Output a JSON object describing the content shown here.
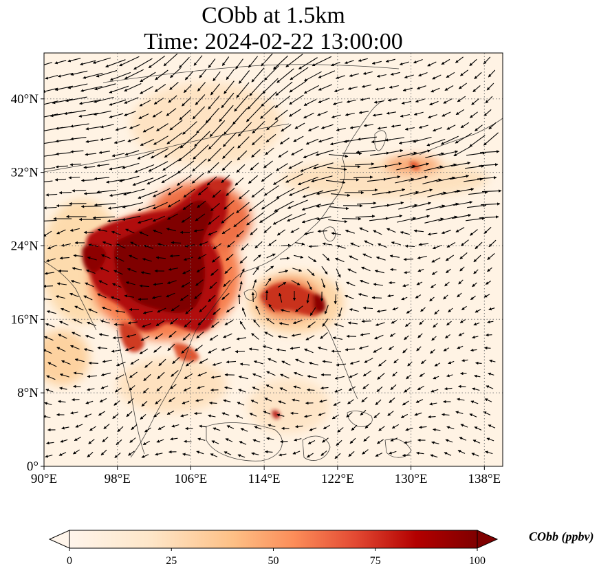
{
  "figure": {
    "title_line1": "CObb at 1.5km",
    "title_line2": "Time: 2024-02-22 13:00:00"
  },
  "map": {
    "extent_lon": [
      90,
      140
    ],
    "extent_lat": [
      0,
      45
    ],
    "lon_ticks": [
      {
        "value": 90,
        "label": "90°E"
      },
      {
        "value": 98,
        "label": "98°E"
      },
      {
        "value": 106,
        "label": "106°E"
      },
      {
        "value": 114,
        "label": "114°E"
      },
      {
        "value": 122,
        "label": "122°E"
      },
      {
        "value": 130,
        "label": "130°E"
      },
      {
        "value": 138,
        "label": "138°E"
      }
    ],
    "lat_ticks": [
      {
        "value": 0,
        "label": "0°"
      },
      {
        "value": 8,
        "label": "8°N"
      },
      {
        "value": 16,
        "label": "16°N"
      },
      {
        "value": 24,
        "label": "24°N"
      },
      {
        "value": 32,
        "label": "32°N"
      },
      {
        "value": 40,
        "label": "40°N"
      }
    ],
    "gridlines": true,
    "field_variable": "CObb",
    "overlay": "wind vectors",
    "colormap": "OrRd",
    "colors": {
      "low": "#fff5eb",
      "mid": "#fc8d59",
      "high": "#7f0000",
      "coast": "#222222",
      "vector": "#000000"
    }
  },
  "colorbar": {
    "label": "CObb (ppbv)",
    "min": 0,
    "max": 100,
    "extend": "both",
    "ticks": [
      {
        "value": 0,
        "label": "0"
      },
      {
        "value": 25,
        "label": "25"
      },
      {
        "value": 50,
        "label": "50"
      },
      {
        "value": 75,
        "label": "75"
      },
      {
        "value": 100,
        "label": "100"
      }
    ]
  }
}
